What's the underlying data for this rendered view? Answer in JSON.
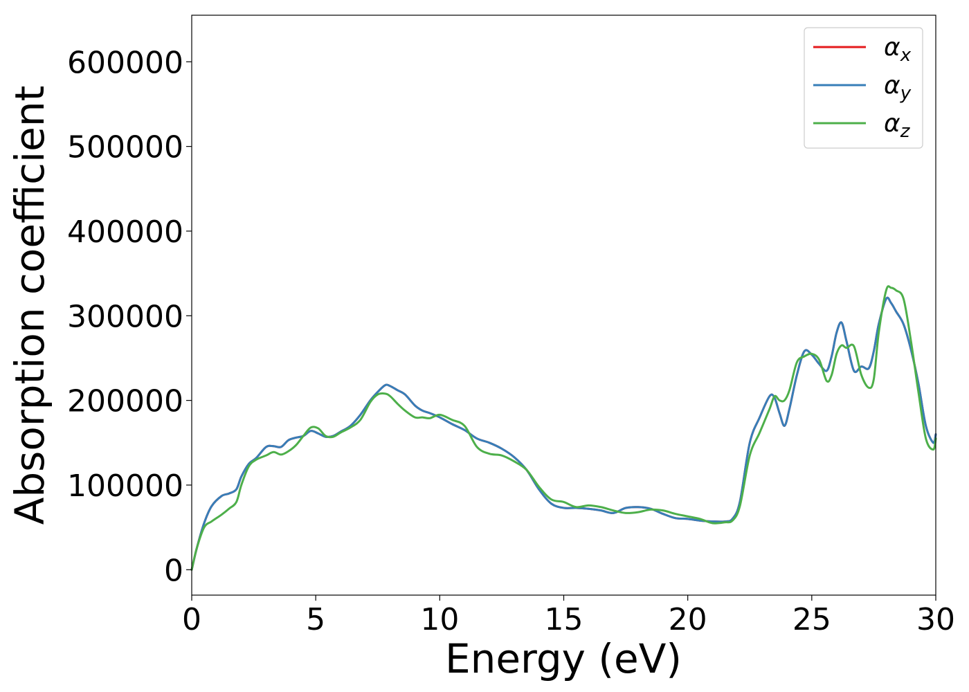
{
  "chart_data": {
    "type": "line",
    "title": "",
    "xlabel": "Energy (eV)",
    "ylabel": "Absorption coefficient",
    "xlim": [
      0,
      30
    ],
    "ylim": [
      -30000,
      655000
    ],
    "xticks": [
      0,
      5,
      10,
      15,
      20,
      25,
      30
    ],
    "yticks": [
      0,
      100000,
      200000,
      300000,
      400000,
      500000,
      600000
    ],
    "grid": false,
    "legend": {
      "position": "top-right"
    },
    "series": [
      {
        "name": "α_x",
        "name_base": "α",
        "name_sub": "x",
        "color": "#e41a1c",
        "x": [
          0,
          0.2,
          0.5,
          0.8,
          1.2,
          1.5,
          1.8,
          2.0,
          2.3,
          2.6,
          3.0,
          3.3,
          3.6,
          3.9,
          4.2,
          4.5,
          4.8,
          5.1,
          5.4,
          5.7,
          6.0,
          6.4,
          6.8,
          7.2,
          7.5,
          7.8,
          8.0,
          8.3,
          8.6,
          9.0,
          9.3,
          9.6,
          10.0,
          10.5,
          11.0,
          11.5,
          12.0,
          12.5,
          13.0,
          13.5,
          14.0,
          14.5,
          15.0,
          15.5,
          16.0,
          16.5,
          17.0,
          17.5,
          18.0,
          18.5,
          19.0,
          19.5,
          20.0,
          20.5,
          21.0,
          21.5,
          21.8,
          22.1,
          22.5,
          22.9,
          23.3,
          23.5,
          23.7,
          23.9,
          24.1,
          24.4,
          24.7,
          25.0,
          25.3,
          25.6,
          25.8,
          26.0,
          26.2,
          26.4,
          26.7,
          27.0,
          27.3,
          27.5,
          27.7,
          28.0,
          28.2,
          28.4,
          28.7,
          29.0,
          29.3,
          29.6,
          29.9,
          30.0
        ],
        "y": [
          0,
          25000,
          55000,
          75000,
          87000,
          90000,
          95000,
          110000,
          125000,
          132000,
          145000,
          146000,
          145000,
          153000,
          156000,
          158000,
          164000,
          161000,
          157000,
          158000,
          163000,
          170000,
          183000,
          200000,
          210000,
          218000,
          217000,
          212000,
          207000,
          194000,
          188000,
          185000,
          180000,
          172000,
          165000,
          155000,
          150000,
          143000,
          133000,
          118000,
          95000,
          78000,
          73000,
          73000,
          72000,
          70000,
          67000,
          73000,
          74000,
          72000,
          66000,
          61000,
          60000,
          58000,
          57000,
          57000,
          60000,
          80000,
          150000,
          180000,
          205000,
          203000,
          185000,
          170000,
          190000,
          230000,
          258000,
          254000,
          243000,
          235000,
          252000,
          280000,
          292000,
          270000,
          235000,
          240000,
          238000,
          258000,
          290000,
          320000,
          315000,
          305000,
          290000,
          260000,
          220000,
          170000,
          150000,
          160000
        ]
      },
      {
        "name": "α_y",
        "name_base": "α",
        "name_sub": "y",
        "color": "#377eb8",
        "x": [
          0,
          0.2,
          0.5,
          0.8,
          1.2,
          1.5,
          1.8,
          2.0,
          2.3,
          2.6,
          3.0,
          3.3,
          3.6,
          3.9,
          4.2,
          4.5,
          4.8,
          5.1,
          5.4,
          5.7,
          6.0,
          6.4,
          6.8,
          7.2,
          7.5,
          7.8,
          8.0,
          8.3,
          8.6,
          9.0,
          9.3,
          9.6,
          10.0,
          10.5,
          11.0,
          11.5,
          12.0,
          12.5,
          13.0,
          13.5,
          14.0,
          14.5,
          15.0,
          15.5,
          16.0,
          16.5,
          17.0,
          17.5,
          18.0,
          18.5,
          19.0,
          19.5,
          20.0,
          20.5,
          21.0,
          21.5,
          21.8,
          22.1,
          22.5,
          22.9,
          23.3,
          23.5,
          23.7,
          23.9,
          24.1,
          24.4,
          24.7,
          25.0,
          25.3,
          25.6,
          25.8,
          26.0,
          26.2,
          26.4,
          26.7,
          27.0,
          27.3,
          27.5,
          27.7,
          28.0,
          28.2,
          28.4,
          28.7,
          29.0,
          29.3,
          29.6,
          29.9,
          30.0
        ],
        "y": [
          0,
          25000,
          55000,
          75000,
          87000,
          90000,
          95000,
          110000,
          125000,
          132000,
          145000,
          146000,
          145000,
          153000,
          156000,
          158000,
          164000,
          161000,
          157000,
          158000,
          163000,
          170000,
          183000,
          200000,
          210000,
          218000,
          217000,
          212000,
          207000,
          194000,
          188000,
          185000,
          180000,
          172000,
          165000,
          155000,
          150000,
          143000,
          133000,
          118000,
          95000,
          78000,
          73000,
          73000,
          72000,
          70000,
          67000,
          73000,
          74000,
          72000,
          66000,
          61000,
          60000,
          58000,
          57000,
          57000,
          60000,
          80000,
          150000,
          180000,
          205000,
          203000,
          185000,
          170000,
          190000,
          230000,
          258000,
          254000,
          243000,
          235000,
          252000,
          280000,
          292000,
          270000,
          235000,
          240000,
          238000,
          258000,
          290000,
          320000,
          315000,
          305000,
          290000,
          260000,
          220000,
          170000,
          150000,
          160000
        ]
      },
      {
        "name": "α_z",
        "name_base": "α",
        "name_sub": "z",
        "color": "#4daf4a",
        "x": [
          0,
          0.2,
          0.5,
          0.8,
          1.2,
          1.5,
          1.8,
          2.0,
          2.3,
          2.6,
          3.0,
          3.3,
          3.6,
          3.9,
          4.2,
          4.5,
          4.8,
          5.1,
          5.4,
          5.7,
          6.0,
          6.4,
          6.8,
          7.2,
          7.5,
          7.8,
          8.0,
          8.3,
          8.6,
          9.0,
          9.3,
          9.6,
          10.0,
          10.5,
          11.0,
          11.5,
          12.0,
          12.5,
          13.0,
          13.5,
          14.0,
          14.5,
          15.0,
          15.5,
          16.0,
          16.5,
          17.0,
          17.5,
          18.0,
          18.5,
          19.0,
          19.5,
          20.0,
          20.5,
          21.0,
          21.5,
          21.8,
          22.1,
          22.5,
          22.9,
          23.3,
          23.5,
          23.7,
          23.9,
          24.1,
          24.4,
          24.7,
          25.0,
          25.3,
          25.6,
          25.8,
          26.0,
          26.2,
          26.4,
          26.7,
          27.0,
          27.3,
          27.5,
          27.7,
          28.0,
          28.2,
          28.4,
          28.7,
          29.0,
          29.3,
          29.6,
          29.9,
          30.0
        ],
        "y": [
          0,
          25000,
          50000,
          57000,
          65000,
          72000,
          80000,
          100000,
          122000,
          130000,
          135000,
          139000,
          136000,
          140000,
          147000,
          158000,
          168000,
          167000,
          158000,
          157000,
          162000,
          168000,
          177000,
          198000,
          207000,
          208000,
          205000,
          196000,
          188000,
          180000,
          180000,
          179000,
          183000,
          177000,
          170000,
          145000,
          137000,
          135000,
          128000,
          118000,
          98000,
          83000,
          80000,
          74000,
          76000,
          74000,
          70000,
          67000,
          68000,
          71000,
          70000,
          66000,
          63000,
          60000,
          55000,
          56000,
          58000,
          75000,
          135000,
          162000,
          190000,
          205000,
          200000,
          200000,
          212000,
          245000,
          252000,
          255000,
          248000,
          223000,
          230000,
          255000,
          265000,
          262000,
          264000,
          230000,
          215000,
          225000,
          280000,
          330000,
          333000,
          330000,
          320000,
          270000,
          210000,
          155000,
          142000,
          155000
        ]
      }
    ]
  }
}
